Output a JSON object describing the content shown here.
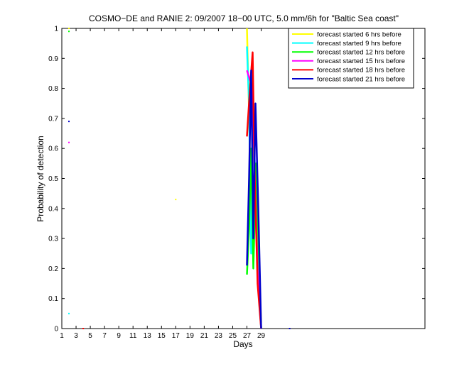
{
  "chart_data": {
    "type": "line",
    "title": "COSMO−DE and RANIE 2: 09/2007 18−00 UTC, 5.0 mm/6h for \"Baltic Sea coast\"",
    "xlabel": "Days",
    "ylabel": "Probability of detection",
    "xlim": [
      1,
      52
    ],
    "ylim": [
      0,
      1
    ],
    "xticks": [
      1,
      3,
      5,
      7,
      9,
      11,
      13,
      15,
      17,
      19,
      21,
      23,
      25,
      27,
      29
    ],
    "yticks": [
      0,
      0.1,
      0.2,
      0.3,
      0.4,
      0.5,
      0.6,
      0.7,
      0.8,
      0.9,
      1
    ],
    "ytick_labels": [
      "0",
      "0.1",
      "0.2",
      "0.3",
      "0.4",
      "0.5",
      "0.6",
      "0.7",
      "0.8",
      "0.9",
      "1"
    ],
    "grid": false,
    "legend_position": "top-right",
    "series": [
      {
        "name": "forecast started 6 hrs before",
        "color": "#ffff00",
        "points": [
          [
            2,
            1.0
          ],
          [
            17,
            0.43
          ]
        ],
        "line": [
          [
            27,
            1.0
          ],
          [
            27.3,
            0.72
          ],
          [
            27.6,
            0.4
          ],
          [
            27.9,
            0.3
          ],
          [
            28.3,
            0.52
          ],
          [
            28.7,
            0.2
          ],
          [
            29,
            0.02
          ]
        ]
      },
      {
        "name": "forecast started 9 hrs before",
        "color": "#00ffff",
        "points": [
          [
            2,
            0.05
          ]
        ],
        "line": [
          [
            27,
            0.94
          ],
          [
            27.3,
            0.75
          ],
          [
            27.6,
            0.25
          ],
          [
            27.9,
            0.7
          ],
          [
            28.3,
            0.4
          ],
          [
            28.7,
            0.1
          ],
          [
            29,
            0.0
          ]
        ]
      },
      {
        "name": "forecast started 12 hrs before",
        "color": "#00ff00",
        "points": [
          [
            2,
            0.99
          ]
        ],
        "line": [
          [
            27,
            0.18
          ],
          [
            27.3,
            0.33
          ],
          [
            27.6,
            0.6
          ],
          [
            27.9,
            0.2
          ],
          [
            28.3,
            0.55
          ],
          [
            28.7,
            0.15
          ],
          [
            29,
            0.0
          ]
        ]
      },
      {
        "name": "forecast started 15 hrs before",
        "color": "#ff00ff",
        "points": [
          [
            2,
            0.62
          ]
        ],
        "line": [
          [
            27,
            0.86
          ],
          [
            27.4,
            0.83
          ],
          [
            27.8,
            0.8
          ],
          [
            28.1,
            0.5
          ],
          [
            28.5,
            0.2
          ],
          [
            29,
            0.0
          ]
        ]
      },
      {
        "name": "forecast started 18 hrs before",
        "color": "#ff0000",
        "points": [
          [
            4,
            0.0
          ]
        ],
        "line": [
          [
            27,
            0.64
          ],
          [
            27.4,
            0.79
          ],
          [
            27.8,
            0.92
          ],
          [
            28.1,
            0.5
          ],
          [
            28.5,
            0.15
          ],
          [
            29,
            0.0
          ]
        ]
      },
      {
        "name": "forecast started 21 hrs before",
        "color": "#0000cc",
        "points": [
          [
            2,
            0.69
          ],
          [
            33,
            0.0
          ]
        ],
        "line": [
          [
            27,
            0.21
          ],
          [
            27.3,
            0.5
          ],
          [
            27.6,
            0.86
          ],
          [
            27.9,
            0.3
          ],
          [
            28.2,
            0.75
          ],
          [
            28.6,
            0.4
          ],
          [
            29,
            0.0
          ]
        ]
      }
    ]
  }
}
